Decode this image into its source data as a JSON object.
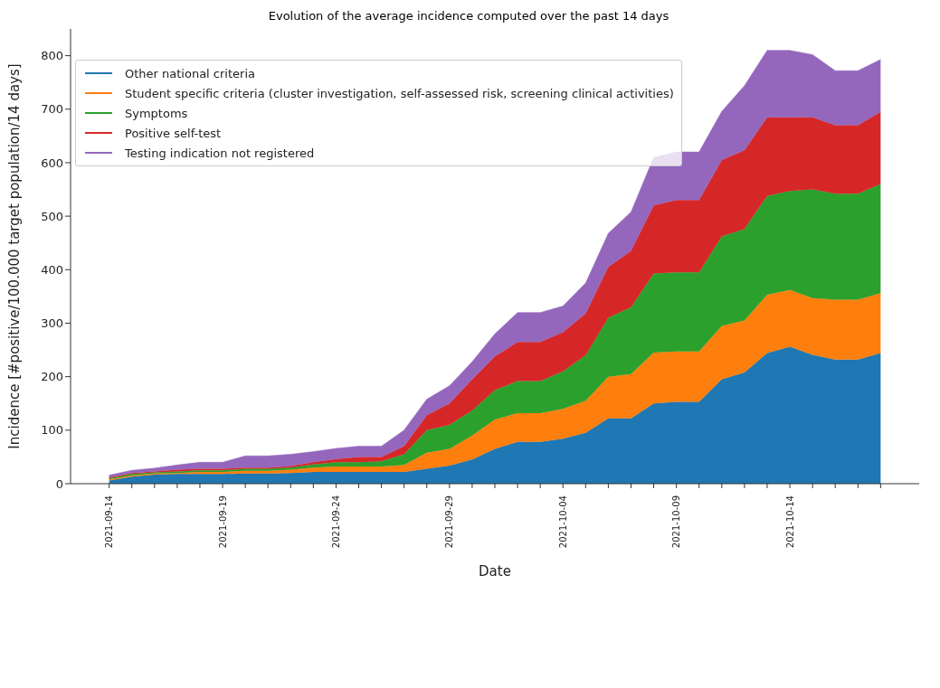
{
  "chart_data": {
    "type": "area",
    "stacked": true,
    "title": "Evolution of the average incidence computed over the past 14 days",
    "xlabel": "Date",
    "ylabel": "Incidence [#positive/100.000 target population/14 days]",
    "x": [
      "2021-09-14",
      "2021-09-15",
      "2021-09-16",
      "2021-09-17",
      "2021-09-18",
      "2021-09-19",
      "2021-09-20",
      "2021-09-21",
      "2021-09-22",
      "2021-09-23",
      "2021-09-24",
      "2021-09-25",
      "2021-09-26",
      "2021-09-27",
      "2021-09-28",
      "2021-09-29",
      "2021-09-30",
      "2021-10-01",
      "2021-10-02",
      "2021-10-03",
      "2021-10-04",
      "2021-10-05",
      "2021-10-06",
      "2021-10-07",
      "2021-10-08",
      "2021-10-09",
      "2021-10-10",
      "2021-10-11",
      "2021-10-12",
      "2021-10-13",
      "2021-10-14",
      "2021-10-15",
      "2021-10-16",
      "2021-10-17",
      "2021-10-18"
    ],
    "series": [
      {
        "name": "Other national criteria",
        "color": "#1f77b4",
        "values": [
          6,
          13,
          17,
          18,
          18,
          18,
          19,
          19,
          20,
          22,
          22,
          22,
          22,
          22,
          28,
          34,
          45,
          65,
          78,
          78,
          84,
          95,
          122,
          122,
          150,
          153,
          153,
          195,
          208,
          244,
          256,
          241,
          232,
          232,
          244
        ]
      },
      {
        "name": "Student specific criteria (cluster investigation, self-assessed risk, screening clinical activities)",
        "color": "#ff7f0e",
        "values": [
          2,
          2,
          2,
          2,
          4,
          4,
          5,
          5,
          6,
          8,
          10,
          10,
          10,
          13,
          30,
          31,
          45,
          55,
          54,
          54,
          56,
          60,
          78,
          83,
          95,
          94,
          94,
          100,
          97,
          109,
          106,
          106,
          112,
          112,
          112
        ]
      },
      {
        "name": "Symptoms",
        "color": "#2ca02c",
        "values": [
          2,
          3,
          2,
          3,
          3,
          3,
          4,
          4,
          4,
          6,
          8,
          8,
          10,
          20,
          42,
          45,
          47,
          55,
          60,
          60,
          70,
          85,
          110,
          125,
          148,
          148,
          148,
          167,
          171,
          185,
          185,
          203,
          198,
          198,
          204
        ]
      },
      {
        "name": "Positive self-test",
        "color": "#d62728",
        "values": [
          2,
          2,
          2,
          3,
          3,
          3,
          2,
          2,
          3,
          4,
          6,
          10,
          8,
          15,
          28,
          40,
          58,
          63,
          73,
          73,
          73,
          78,
          95,
          105,
          127,
          135,
          135,
          143,
          147,
          147,
          138,
          135,
          128,
          128,
          135
        ]
      },
      {
        "name": "Testing indication not registered",
        "color": "#9467bd",
        "values": [
          4,
          5,
          6,
          9,
          12,
          12,
          22,
          22,
          22,
          20,
          20,
          20,
          20,
          30,
          30,
          33,
          33,
          42,
          55,
          55,
          49,
          57,
          63,
          73,
          90,
          90,
          90,
          91,
          121,
          125,
          125,
          117,
          102,
          102,
          98
        ]
      }
    ],
    "xlim": [
      "2021-09-12T07:12",
      "2021-10-19T16:48"
    ],
    "xticks": [
      {
        "value": "2021-09-14",
        "label": "2021-09-14"
      },
      {
        "value": "2021-09-15",
        "label": null
      },
      {
        "value": "2021-09-16",
        "label": null
      },
      {
        "value": "2021-09-17",
        "label": null
      },
      {
        "value": "2021-09-18",
        "label": null
      },
      {
        "value": "2021-09-19",
        "label": "2021-09-19"
      },
      {
        "value": "2021-09-20",
        "label": null
      },
      {
        "value": "2021-09-21",
        "label": null
      },
      {
        "value": "2021-09-22",
        "label": null
      },
      {
        "value": "2021-09-23",
        "label": null
      },
      {
        "value": "2021-09-24",
        "label": "2021-09-24"
      },
      {
        "value": "2021-09-25",
        "label": null
      },
      {
        "value": "2021-09-26",
        "label": null
      },
      {
        "value": "2021-09-27",
        "label": null
      },
      {
        "value": "2021-09-28",
        "label": null
      },
      {
        "value": "2021-09-29",
        "label": "2021-09-29"
      },
      {
        "value": "2021-09-30",
        "label": null
      },
      {
        "value": "2021-10-01",
        "label": null
      },
      {
        "value": "2021-10-02",
        "label": null
      },
      {
        "value": "2021-10-03",
        "label": null
      },
      {
        "value": "2021-10-04",
        "label": "2021-10-04"
      },
      {
        "value": "2021-10-05",
        "label": null
      },
      {
        "value": "2021-10-06",
        "label": null
      },
      {
        "value": "2021-10-07",
        "label": null
      },
      {
        "value": "2021-10-08",
        "label": null
      },
      {
        "value": "2021-10-09",
        "label": "2021-10-09"
      },
      {
        "value": "2021-10-10",
        "label": null
      },
      {
        "value": "2021-10-11",
        "label": null
      },
      {
        "value": "2021-10-12",
        "label": null
      },
      {
        "value": "2021-10-13",
        "label": null
      },
      {
        "value": "2021-10-14",
        "label": "2021-10-14"
      },
      {
        "value": "2021-10-15",
        "label": null
      },
      {
        "value": "2021-10-16",
        "label": null
      },
      {
        "value": "2021-10-17",
        "label": null
      },
      {
        "value": "2021-10-18",
        "label": null
      }
    ],
    "ylim": [
      0,
      850
    ],
    "yticks": [
      0,
      100,
      200,
      300,
      400,
      500,
      600,
      700,
      800
    ],
    "legend": "top left"
  }
}
